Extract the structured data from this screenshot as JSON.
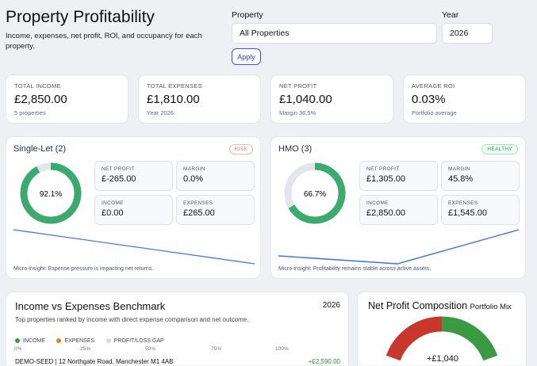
{
  "header": {
    "title": "Property Profitability",
    "subtitle": "Income, expenses, net profit, ROI, and occupancy for each property."
  },
  "filters": {
    "property_label": "Property",
    "property_value": "All Properties",
    "year_label": "Year",
    "year_value": "2026",
    "apply_label": "Apply"
  },
  "stats": [
    {
      "title": "TOTAL INCOME",
      "value": "£2,850.00",
      "note": "5 properties"
    },
    {
      "title": "TOTAL EXPENSES",
      "value": "£1,810.00",
      "note": "Year 2026"
    },
    {
      "title": "NET PROFIT",
      "value": "£1,040.00",
      "note": "Margin 36.5%"
    },
    {
      "title": "AVERAGE ROI",
      "value": "0.03%",
      "note": "Portfolio average"
    }
  ],
  "segments": [
    {
      "title": "Single-Let (2)",
      "badge": "RISK",
      "badge_color": "#e57373",
      "occupancy": 92.1,
      "occupancy_label": "92.1%",
      "net_profit_label": "NET PROFIT",
      "net_profit": "£-265.00",
      "margin_label": "MARGIN",
      "margin": "0.0%",
      "income_label": "INCOME",
      "income": "£0.00",
      "expenses_label": "EXPENSES",
      "expenses": "£265.00",
      "insight": "Micro-insight: Expense pressure is impacting net returns."
    },
    {
      "title": "HMO (3)",
      "badge": "HEALTHY",
      "badge_color": "#2e9e5a",
      "occupancy": 66.7,
      "occupancy_label": "66.7%",
      "net_profit_label": "NET PROFIT",
      "net_profit": "£1,305.00",
      "margin_label": "MARGIN",
      "margin": "45.8%",
      "income_label": "INCOME",
      "income": "£2,850.00",
      "expenses_label": "EXPENSES",
      "expenses": "£1,545.00",
      "insight": "Micro-insight: Profitability remains stable across active assets."
    }
  ],
  "benchmark": {
    "title": "Income vs Expenses Benchmark",
    "year": "2026",
    "subtitle": "Top properties ranked by income with direct expense comparison and net outcome.",
    "legend": [
      {
        "label": "INCOME",
        "color": "#2e9e3a"
      },
      {
        "label": "EXPENSES",
        "color": "#f07a2a"
      },
      {
        "label": "PROFIT/LOSS GAP",
        "color": "#d5d9e6"
      }
    ],
    "ticks": [
      "0%",
      "25%",
      "50%",
      "75%",
      "100%"
    ],
    "rows": [
      {
        "name": "DEMO-SEED | 12 Northgate Road, Manchester M1 4AB",
        "net": "+£2,590.00"
      }
    ]
  },
  "composition": {
    "title": "Net Profit Composition",
    "subtitle": "Portfolio Mix",
    "center": "+£1,040",
    "colors": {
      "income": "#3a9a44",
      "expenses": "#c9372c"
    }
  },
  "colors": {
    "donut": "#3aaa6e",
    "donut_track": "#e2e5ea",
    "spark": "#3b6ef0"
  }
}
